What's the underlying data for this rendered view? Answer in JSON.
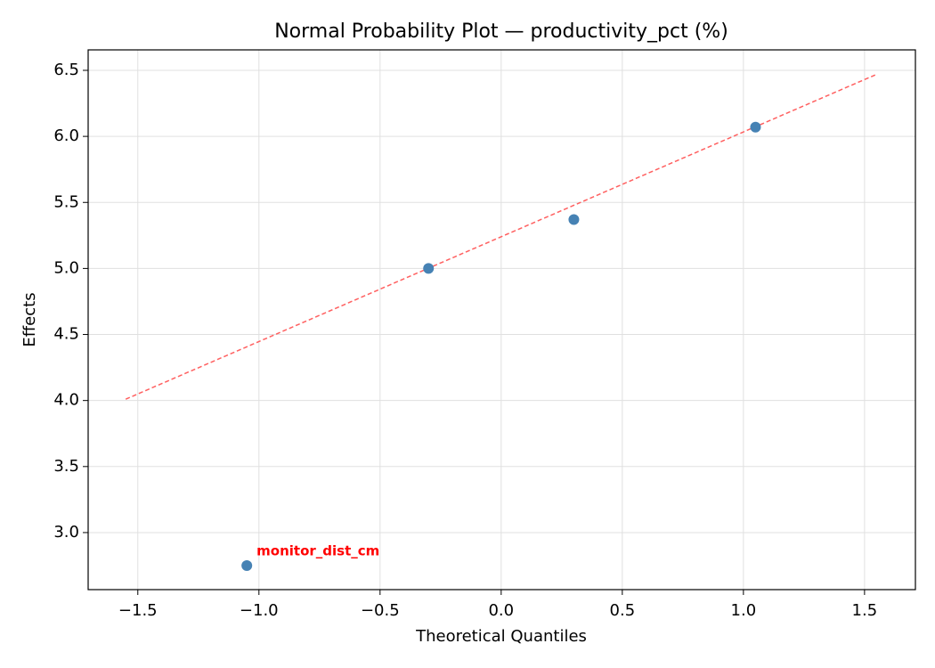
{
  "chart_data": {
    "type": "scatter",
    "title": "Normal Probability Plot — productivity_pct (%)",
    "x_label": "Theoretical Quantiles",
    "y_label": "Effects",
    "x": [
      -1.05,
      -0.3,
      0.3,
      1.05
    ],
    "values": [
      2.75,
      5.0,
      5.37,
      6.07
    ],
    "color": "#4682b4",
    "fit_line": {
      "x": [
        -1.55,
        1.55
      ],
      "y": [
        4.01,
        6.47
      ],
      "color": "#ff6060"
    },
    "annotations": [
      {
        "text": "monitor_dist_cm",
        "x": -1.05,
        "y": 2.75,
        "color": "#ff0000"
      }
    ],
    "xlim": [
      -1.705,
      1.71
    ],
    "ylim": [
      2.568,
      6.655
    ],
    "xticks": [
      {
        "value": -1.5,
        "label": "−1.5"
      },
      {
        "value": -1,
        "label": "−1.0"
      },
      {
        "value": -0.5,
        "label": "−0.5"
      },
      {
        "value": 0,
        "label": "0.0"
      },
      0.5,
      {
        "value": 1,
        "label": "1.0"
      },
      1.5
    ],
    "yticks": [
      {
        "value": 3,
        "label": "3.0"
      },
      3.5,
      {
        "value": 4,
        "label": "4.0"
      },
      4.5,
      {
        "value": 5,
        "label": "5.0"
      },
      5.5,
      {
        "value": 6,
        "label": "6.0"
      },
      6.5
    ],
    "grid": true
  }
}
